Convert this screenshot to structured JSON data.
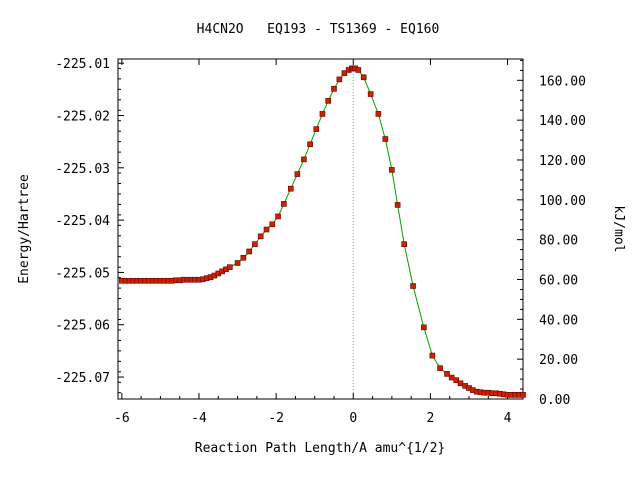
{
  "chart_data": {
    "type": "line",
    "title": "H4CN2O   EQ193 - TS1369 - EQ160",
    "xlabel": "Reaction Path Length/A amu^{1/2}",
    "ylabel": "Energy/Hartree",
    "y2label": "kJ/mol",
    "xlim": [
      -6.1,
      4.4
    ],
    "ylim": [
      -225.0742,
      -225.0092
    ],
    "y2lim": [
      0,
      170.7
    ],
    "x_ticks": [
      {
        "value": -6,
        "label": "-6"
      },
      {
        "value": -4,
        "label": "-4"
      },
      {
        "value": -2,
        "label": "-2"
      },
      {
        "value": 0,
        "label": "0"
      },
      {
        "value": 2,
        "label": "2"
      },
      {
        "value": 4,
        "label": "4"
      }
    ],
    "y_ticks": [
      {
        "value": -225.01,
        "label": "-225.01"
      },
      {
        "value": -225.02,
        "label": "-225.02"
      },
      {
        "value": -225.03,
        "label": "-225.03"
      },
      {
        "value": -225.04,
        "label": "-225.04"
      },
      {
        "value": -225.05,
        "label": "-225.05"
      },
      {
        "value": -225.06,
        "label": "-225.06"
      },
      {
        "value": -225.07,
        "label": "-225.07"
      }
    ],
    "y2_ticks": [
      {
        "value": 0,
        "label": "0.00"
      },
      {
        "value": 20,
        "label": "20.00"
      },
      {
        "value": 40,
        "label": "40.00"
      },
      {
        "value": 60,
        "label": "60.00"
      },
      {
        "value": 80,
        "label": "80.00"
      },
      {
        "value": 100,
        "label": "100.00"
      },
      {
        "value": 120,
        "label": "120.00"
      },
      {
        "value": 140,
        "label": "140.00"
      },
      {
        "value": 160,
        "label": "160.00"
      }
    ],
    "ts_marker_x": 0,
    "colors": {
      "line": "#00a000",
      "marker": "#cc2200",
      "marker_edge": "#660000",
      "ts_line": "#a0a0a0"
    },
    "series": [
      {
        "x": [
          -6.0,
          -5.9,
          -5.8,
          -5.7,
          -5.6,
          -5.5,
          -5.4,
          -5.3,
          -5.2,
          -5.1,
          -5.0,
          -4.9,
          -4.8,
          -4.7,
          -4.6,
          -4.5,
          -4.4,
          -4.3,
          -4.2,
          -4.1,
          -4.0,
          -3.9,
          -3.8,
          -3.7,
          -3.6,
          -3.5,
          -3.4,
          -3.3,
          -3.2,
          -3.0,
          -2.85,
          -2.7,
          -2.55,
          -2.4,
          -2.25,
          -2.1,
          -1.95,
          -1.8,
          -1.62,
          -1.45,
          -1.28,
          -1.12,
          -0.96,
          -0.8,
          -0.65,
          -0.5,
          -0.36,
          -0.23,
          -0.12,
          -0.04,
          0.0,
          0.05,
          0.13,
          0.27,
          0.45,
          0.65,
          0.83,
          1.0,
          1.15,
          1.32,
          1.55,
          1.83,
          2.05,
          2.25,
          2.43,
          2.55,
          2.67,
          2.78,
          2.9,
          3.0,
          3.1,
          3.2,
          3.3,
          3.4,
          3.5,
          3.6,
          3.7,
          3.8,
          3.9,
          4.0,
          4.1,
          4.2,
          4.3,
          4.4
        ],
        "y": [
          -225.0516,
          -225.0516,
          -225.0516,
          -225.0516,
          -225.0516,
          -225.0516,
          -225.0516,
          -225.0516,
          -225.0516,
          -225.0516,
          -225.0516,
          -225.0516,
          -225.0516,
          -225.0516,
          -225.0515,
          -225.0515,
          -225.0514,
          -225.0514,
          -225.0514,
          -225.0514,
          -225.0514,
          -225.0513,
          -225.0511,
          -225.0509,
          -225.0506,
          -225.0502,
          -225.0498,
          -225.0494,
          -225.049,
          -225.0482,
          -225.0472,
          -225.046,
          -225.0446,
          -225.0431,
          -225.0418,
          -225.0408,
          -225.0393,
          -225.0369,
          -225.034,
          -225.0312,
          -225.0284,
          -225.0255,
          -225.0226,
          -225.0197,
          -225.0172,
          -225.0149,
          -225.0131,
          -225.0119,
          -225.0113,
          -225.011,
          -225.011,
          -225.011,
          -225.0113,
          -225.0127,
          -225.0159,
          -225.0197,
          -225.0245,
          -225.0304,
          -225.0371,
          -225.0446,
          -225.0526,
          -225.0605,
          -225.0659,
          -225.0683,
          -225.0694,
          -225.0701,
          -225.0706,
          -225.0712,
          -225.0717,
          -225.0721,
          -225.0725,
          -225.0728,
          -225.0729,
          -225.073,
          -225.073,
          -225.0731,
          -225.0731,
          -225.0732,
          -225.0733,
          -225.0734,
          -225.0734,
          -225.0734,
          -225.0734,
          -225.0734
        ]
      }
    ]
  }
}
